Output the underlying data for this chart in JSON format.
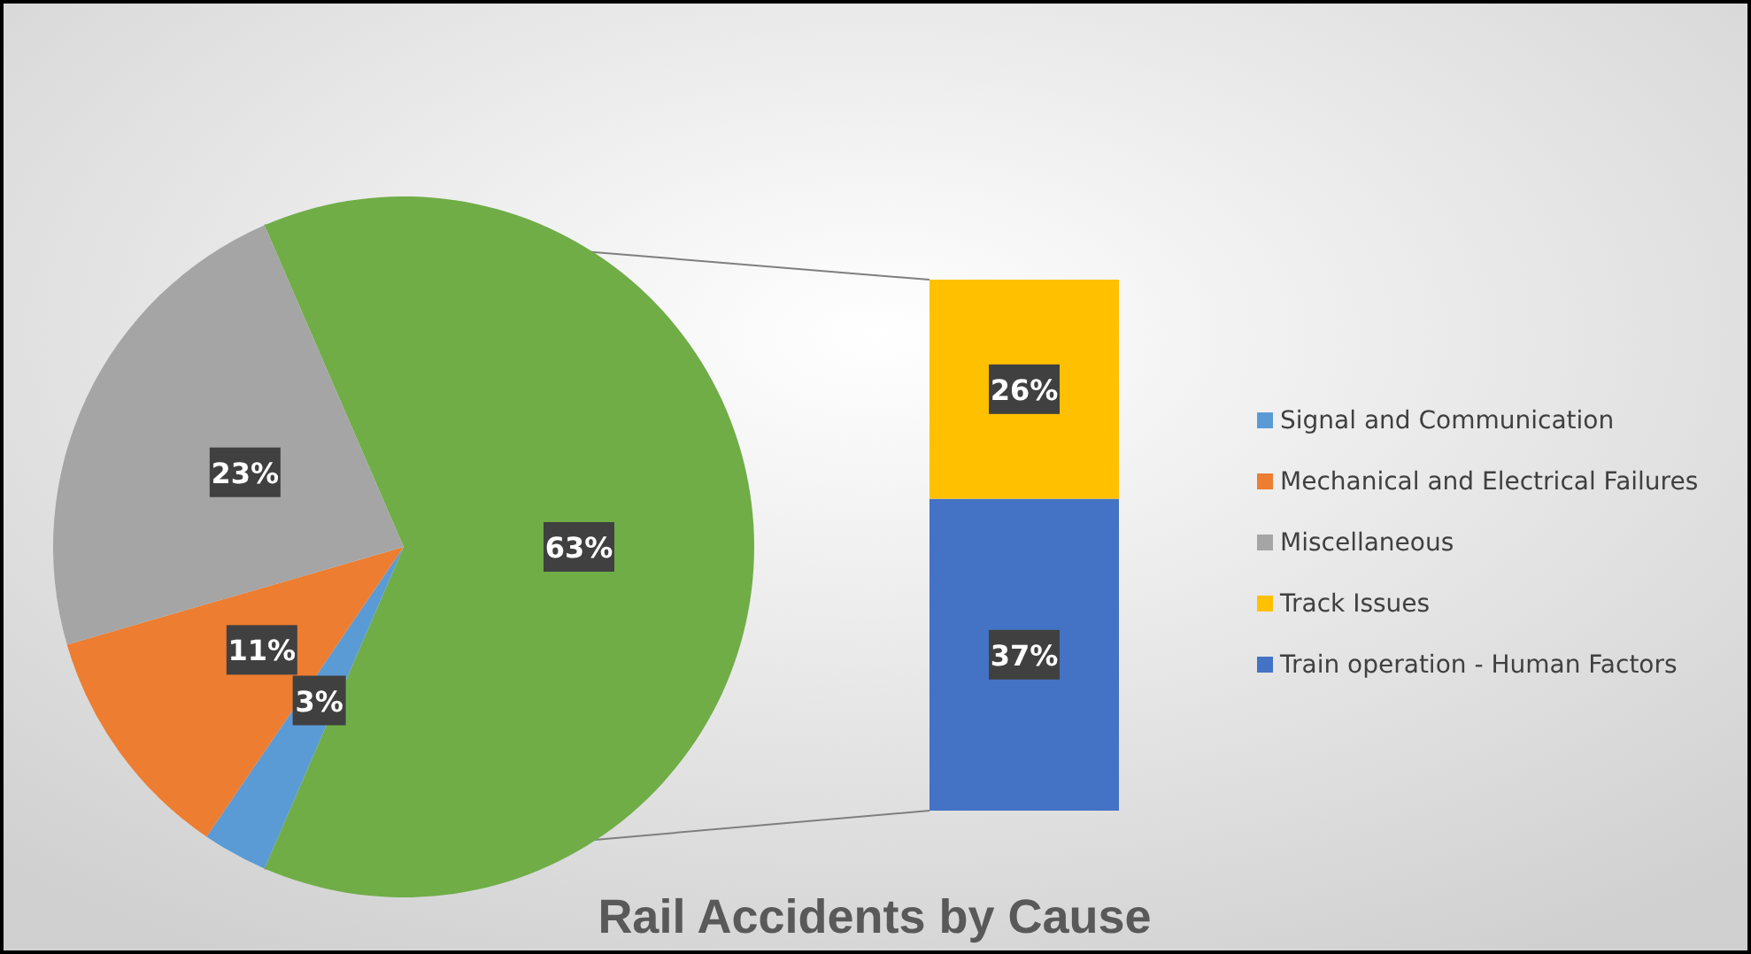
{
  "chart_data": [
    {
      "type": "pie",
      "title": "Rail Accidents by Cause",
      "categories": [
        null,
        "Signal and Communication",
        "Mechanical and Electrical Failures",
        "Miscellaneous"
      ],
      "values": [
        63,
        3,
        11,
        23
      ],
      "colors": [
        "#70ad47",
        "#5b9bd5",
        "#ed7d31",
        "#a5a5a5"
      ],
      "value_labels": [
        "63%",
        "3%",
        "11%",
        "23%"
      ],
      "legend": "right"
    },
    {
      "type": "bar",
      "stacked": true,
      "categories": [
        null
      ],
      "series": [
        {
          "name": "Train operation - Human Factors",
          "color": "#4472c4",
          "values": [
            37
          ],
          "value_labels": [
            "37%"
          ]
        },
        {
          "name": "Track Issues",
          "color": "#ffc000",
          "values": [
            26
          ],
          "value_labels": [
            "26%"
          ]
        }
      ],
      "legend": "right"
    }
  ]
}
